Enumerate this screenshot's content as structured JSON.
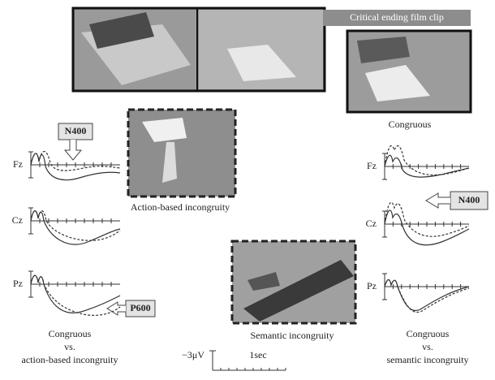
{
  "header": {
    "clip_label": "Critical ending film clip"
  },
  "photos": {
    "congruous": "Congruous",
    "action": "Action-based incongruity",
    "semantic": "Semantic incongruity"
  },
  "left_panel": {
    "electrodes": [
      "Fz",
      "Cz",
      "Pz"
    ],
    "callouts": [
      "N400",
      "P600"
    ],
    "caption": [
      "Congruous",
      "vs.",
      "action-based incongruity"
    ]
  },
  "right_panel": {
    "electrodes": [
      "Fz",
      "Cz",
      "Pz"
    ],
    "callouts": [
      "N400"
    ],
    "caption": [
      "Congruous",
      "vs.",
      "semantic incongruity"
    ]
  },
  "scale_bar": {
    "amplitude": "−3μV",
    "time": "1sec"
  }
}
